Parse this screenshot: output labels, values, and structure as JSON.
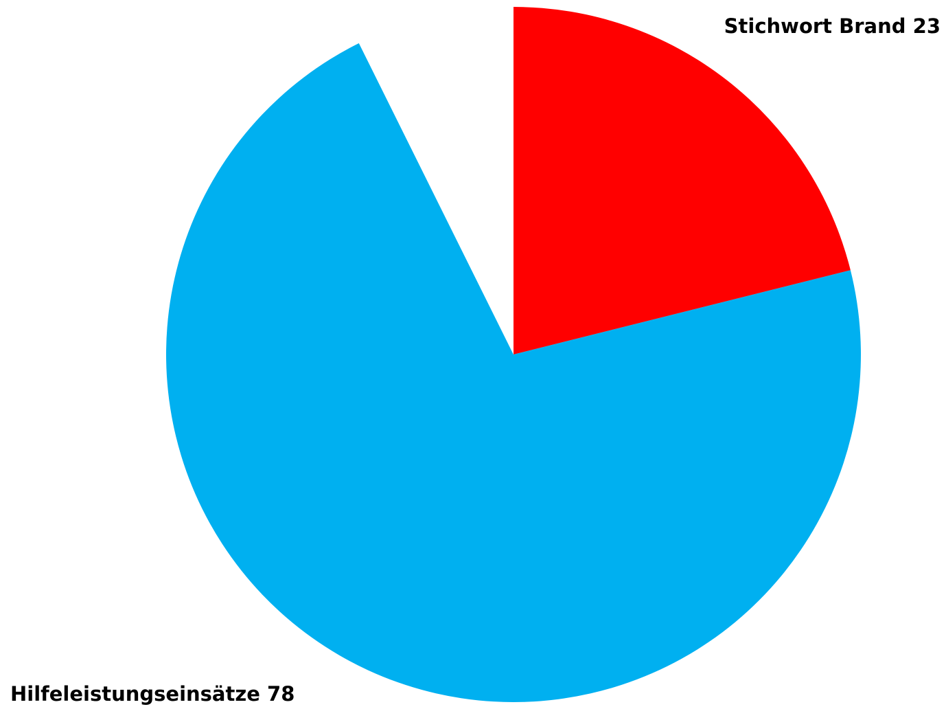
{
  "chart_data": {
    "type": "pie",
    "categories": [
      "Stichwort Brand",
      "Hilfeleistungseinsätze",
      null
    ],
    "values": [
      23,
      78,
      8
    ],
    "colors": [
      "#ff0000",
      "#00b0f0",
      "#ffffff"
    ],
    "start_angle": 0,
    "direction": "clockwise"
  }
}
